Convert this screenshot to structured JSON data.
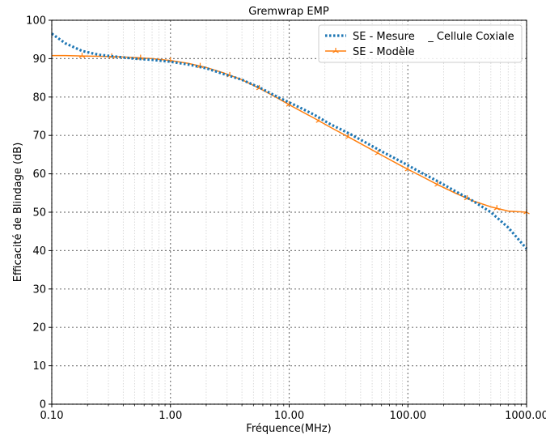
{
  "chart_data": {
    "type": "line",
    "title": "Gremwrap EMP",
    "xlabel": "Fréquence(MHz)",
    "ylabel": "Efficacité de Blindage (dB)",
    "xscale": "log",
    "xlim": [
      0.1,
      1000
    ],
    "ylim": [
      0,
      100
    ],
    "grid": true,
    "legend_position": "top-right",
    "x_ticks": [
      {
        "value": 0.1,
        "label": "0.10"
      },
      {
        "value": 1,
        "label": "1.00"
      },
      {
        "value": 10,
        "label": "10.00"
      },
      {
        "value": 100,
        "label": "100.00"
      },
      {
        "value": 1000,
        "label": "1000.00"
      }
    ],
    "y_ticks": [
      {
        "value": 0,
        "label": "0"
      },
      {
        "value": 10,
        "label": "10"
      },
      {
        "value": 20,
        "label": "20"
      },
      {
        "value": 30,
        "label": "30"
      },
      {
        "value": 40,
        "label": "40"
      },
      {
        "value": 50,
        "label": "50"
      },
      {
        "value": 60,
        "label": "60"
      },
      {
        "value": 70,
        "label": "70"
      },
      {
        "value": 80,
        "label": "80"
      },
      {
        "value": 90,
        "label": "90"
      },
      {
        "value": 100,
        "label": "100"
      }
    ],
    "series": [
      {
        "name": "SE - Mesure    _ Cellule Coxiale",
        "color": "#1f77b4",
        "style": "dotted",
        "x": [
          0.1,
          0.13,
          0.18,
          0.25,
          0.35,
          0.5,
          0.7,
          1.0,
          1.4,
          2.0,
          2.8,
          4.0,
          5.6,
          8.0,
          11,
          16,
          22,
          32,
          45,
          63,
          90,
          126,
          180,
          250,
          350,
          500,
          700,
          1000
        ],
        "y": [
          96.5,
          94,
          92,
          91,
          90.5,
          90,
          89.7,
          89.2,
          88.5,
          87.5,
          86,
          84.5,
          82.5,
          80,
          78,
          75.5,
          73,
          70.5,
          68,
          65.5,
          63,
          60.5,
          58,
          55.5,
          53,
          50,
          46,
          40.5
        ]
      },
      {
        "name": "SE - Modèle",
        "color": "#ff7f0e",
        "style": "solid",
        "x": [
          0.1,
          0.13,
          0.18,
          0.25,
          0.35,
          0.5,
          0.7,
          1.0,
          1.4,
          2.0,
          2.8,
          4.0,
          5.6,
          8.0,
          11,
          16,
          22,
          32,
          45,
          63,
          90,
          126,
          180,
          250,
          350,
          500,
          700,
          1000
        ],
        "y": [
          90.8,
          90.8,
          90.7,
          90.6,
          90.5,
          90.3,
          90.0,
          89.5,
          88.8,
          87.7,
          86.3,
          84.5,
          82.3,
          79.7,
          77.3,
          74.6,
          72.2,
          69.5,
          67.0,
          64.5,
          61.9,
          59.6,
          57.1,
          55.0,
          53.0,
          51.4,
          50.3,
          50.0
        ],
        "marker_x": [
          0.18,
          0.32,
          0.56,
          1.0,
          1.78,
          3.16,
          5.6,
          10,
          17.8,
          31.6,
          56,
          100,
          178,
          316,
          562,
          1000
        ]
      }
    ]
  }
}
